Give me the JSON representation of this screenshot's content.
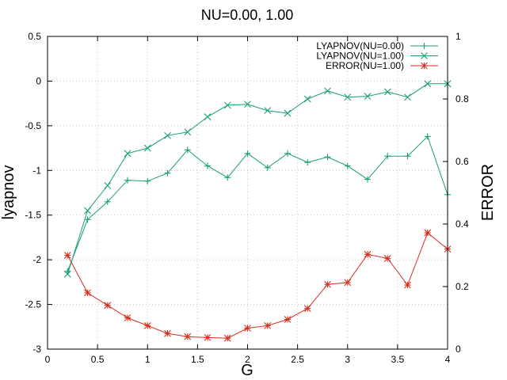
{
  "chart_data": {
    "type": "line",
    "title": "NU=0.00, 1.00",
    "xlabel": "G",
    "ylabel": "lyapnov",
    "y2label": "ERROR",
    "xlim": [
      0,
      4
    ],
    "ylim": [
      -3,
      0.5
    ],
    "y2lim": [
      0,
      1
    ],
    "xticks": [
      "0",
      "0.5",
      "1",
      "1.5",
      "2",
      "2.5",
      "3",
      "3.5",
      "4"
    ],
    "yticks": [
      "-3",
      "-2.5",
      "-2",
      "-1.5",
      "-1",
      "-0.5",
      "0",
      "0.5"
    ],
    "y2ticks": [
      "0",
      "0.2",
      "0.4",
      "0.6",
      "0.8",
      "1"
    ],
    "grid": true,
    "legend_position": "top-right",
    "x": [
      0.2,
      0.4,
      0.6,
      0.8,
      1.0,
      1.2,
      1.4,
      1.6,
      1.8,
      2.0,
      2.2,
      2.4,
      2.6,
      2.8,
      3.0,
      3.2,
      3.4,
      3.6,
      3.8,
      4.0
    ],
    "series": [
      {
        "name": "LYAPNOV(NU=0.00)",
        "axis": "y",
        "marker": "plus",
        "color": "#1a9e77",
        "values": [
          -2.13,
          -1.55,
          -1.35,
          -1.11,
          -1.12,
          -1.03,
          -0.77,
          -0.95,
          -1.08,
          -0.81,
          -0.97,
          -0.81,
          -0.91,
          -0.85,
          -0.95,
          -1.1,
          -0.84,
          -0.84,
          -0.62,
          -1.27
        ]
      },
      {
        "name": "LYAPNOV(NU=1.00)",
        "axis": "y",
        "marker": "cross",
        "color": "#1a9e77",
        "values": [
          -2.16,
          -1.45,
          -1.17,
          -0.81,
          -0.75,
          -0.61,
          -0.57,
          -0.4,
          -0.27,
          -0.26,
          -0.33,
          -0.36,
          -0.2,
          -0.11,
          -0.18,
          -0.17,
          -0.12,
          -0.18,
          -0.03,
          -0.03
        ]
      },
      {
        "name": "ERROR(NU=1.00)",
        "axis": "y2",
        "marker": "star",
        "color": "#d62f1f",
        "values": [
          0.3,
          0.18,
          0.14,
          0.1,
          0.075,
          0.05,
          0.04,
          0.037,
          0.035,
          0.067,
          0.075,
          0.095,
          0.13,
          0.207,
          0.213,
          0.303,
          0.29,
          0.205,
          0.372,
          0.32
        ]
      }
    ]
  }
}
